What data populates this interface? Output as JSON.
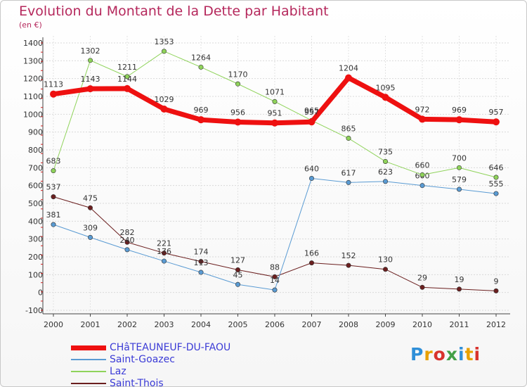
{
  "title": "Evolution du Montant de la Dette par Habitant",
  "unit_label": "(en €)",
  "brand": {
    "text": "Proxiti",
    "letter_colors": [
      "#2f8fd8",
      "#e8a000",
      "#d8332d",
      "#43a047",
      "#2f8fd8",
      "#e8a000",
      "#d8332d"
    ]
  },
  "chart_data": {
    "type": "line",
    "x": [
      "2000",
      "2001",
      "2002",
      "2003",
      "2004",
      "2005",
      "2006",
      "2007",
      "2008",
      "2009",
      "2010",
      "2011",
      "2012"
    ],
    "ylim": [
      -100,
      1400
    ],
    "yticks": [
      -100,
      0,
      100,
      200,
      300,
      400,
      500,
      600,
      700,
      800,
      900,
      1000,
      1100,
      1200,
      1300,
      1400
    ],
    "grid": true,
    "legend_position": "bottom-left",
    "series": [
      {
        "name": "Saint-Thois",
        "color": "#6b1f1f",
        "width": 1,
        "values": [
          537,
          475,
          282,
          221,
          174,
          127,
          88,
          166,
          152,
          130,
          29,
          19,
          9
        ]
      },
      {
        "name": "Saint-Goazec",
        "color": "#5a9bd3",
        "width": 1,
        "values": [
          381,
          309,
          240,
          176,
          113,
          45,
          14,
          640,
          617,
          623,
          600,
          579,
          555
        ]
      },
      {
        "name": "Laz",
        "color": "#8fd35a",
        "width": 1,
        "values": [
          683,
          1302,
          1211,
          1353,
          1264,
          1170,
          1071,
          965,
          865,
          735,
          660,
          700,
          646
        ]
      },
      {
        "name": "CHâTEAUNEUF-DU-FAOU",
        "color": "#ee1010",
        "width": 7,
        "values": [
          1113,
          1143,
          1144,
          1029,
          969,
          956,
          951,
          957,
          1204,
          1095,
          972,
          969,
          957
        ]
      }
    ]
  }
}
